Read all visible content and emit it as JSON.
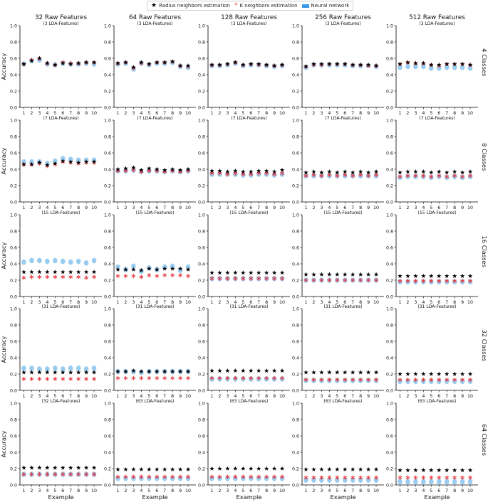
{
  "legend": {
    "items": [
      {
        "label": "Radius neighbors estimation",
        "marker": "black-star",
        "color": "#000000"
      },
      {
        "label": "K neighbors estimation",
        "marker": "red-star",
        "color": "#e8383d"
      },
      {
        "label": "Neural network",
        "marker": "blue-box",
        "color": "#3d9be9"
      }
    ]
  },
  "colors": {
    "radius": "#000000",
    "k_neighbors": "#e8383d",
    "neural_network": "#7fbfee"
  },
  "chart_data": {
    "type": "scatter",
    "columns": [
      "32 Raw Features",
      "64 Raw Features",
      "128 Raw Features",
      "256 Raw Features",
      "512 Raw Features"
    ],
    "rows": [
      "4 Classes",
      "8 Classes",
      "16 Classes",
      "32 Classes",
      "64 Classes"
    ],
    "xlabel": "Example",
    "ylabel": "Accuracy",
    "x": [
      1,
      2,
      3,
      4,
      5,
      6,
      7,
      8,
      9,
      10
    ],
    "ylim": [
      0.0,
      1.0
    ],
    "yticks": [
      "0.0",
      "0.2",
      "0.4",
      "0.6",
      "0.8",
      "1.0"
    ],
    "subtitles": [
      [
        "(3 LDA-Features)",
        "(3 LDA-Features)",
        "(3 LDA-Features)",
        "(3 LDA-Features)",
        "(3 LDA-Features)"
      ],
      [
        "(7 LDA-Features)",
        "(7 LDA-Features)",
        "(7 LDA-Features)",
        "(7 LDA-Features)",
        "(7 LDA-Features)"
      ],
      [
        "(15 LDA-Features)",
        "(15 LDA-Features)",
        "(15 LDA-Features)",
        "(15 LDA-Features)",
        "(15 LDA-Features)"
      ],
      [
        "(31 LDA-Features)",
        "(31 LDA-Features)",
        "(31 LDA-Features)",
        "(31 LDA-Features)",
        "(31 LDA-Features)"
      ],
      [
        "(32 LDA-Features)",
        "(63 LDA-Features)",
        "(63 LDA-Features)",
        "(63 LDA-Features)",
        "(63 LDA-Features)"
      ]
    ],
    "series": {
      "radius": [
        [
          [
            0.53,
            0.57,
            0.6,
            0.54,
            0.52,
            0.54,
            0.53,
            0.54,
            0.55,
            0.55
          ],
          [
            0.54,
            0.55,
            0.49,
            0.55,
            0.53,
            0.55,
            0.55,
            0.56,
            0.51,
            0.51
          ],
          [
            0.52,
            0.52,
            0.53,
            0.55,
            0.52,
            0.53,
            0.53,
            0.52,
            0.51,
            0.52
          ],
          [
            0.5,
            0.53,
            0.53,
            0.53,
            0.53,
            0.53,
            0.52,
            0.52,
            0.52,
            0.51
          ],
          [
            0.53,
            0.55,
            0.54,
            0.54,
            0.52,
            0.52,
            0.53,
            0.53,
            0.53,
            0.52
          ]
        ],
        [
          [
            0.46,
            0.46,
            0.48,
            0.45,
            0.47,
            0.5,
            0.49,
            0.48,
            0.49,
            0.49
          ],
          [
            0.4,
            0.41,
            0.42,
            0.39,
            0.41,
            0.4,
            0.39,
            0.4,
            0.39,
            0.4
          ],
          [
            0.38,
            0.38,
            0.37,
            0.38,
            0.37,
            0.37,
            0.38,
            0.38,
            0.37,
            0.39
          ],
          [
            0.36,
            0.37,
            0.36,
            0.37,
            0.36,
            0.37,
            0.36,
            0.37,
            0.36,
            0.37
          ],
          [
            0.36,
            0.37,
            0.37,
            0.37,
            0.36,
            0.37,
            0.36,
            0.37,
            0.36,
            0.37
          ]
        ],
        [
          [
            0.3,
            0.3,
            0.3,
            0.3,
            0.3,
            0.3,
            0.3,
            0.3,
            0.3,
            0.3
          ],
          [
            0.33,
            0.33,
            0.33,
            0.32,
            0.34,
            0.33,
            0.34,
            0.34,
            0.34,
            0.33
          ],
          [
            0.29,
            0.29,
            0.29,
            0.29,
            0.29,
            0.29,
            0.29,
            0.29,
            0.29,
            0.29
          ],
          [
            0.27,
            0.27,
            0.27,
            0.27,
            0.27,
            0.27,
            0.27,
            0.27,
            0.27,
            0.27
          ],
          [
            0.25,
            0.25,
            0.25,
            0.25,
            0.25,
            0.25,
            0.25,
            0.25,
            0.25,
            0.25
          ]
        ],
        [
          [
            0.22,
            0.22,
            0.22,
            0.22,
            0.22,
            0.22,
            0.22,
            0.22,
            0.22,
            0.22
          ],
          [
            0.23,
            0.23,
            0.24,
            0.23,
            0.23,
            0.23,
            0.23,
            0.23,
            0.23,
            0.23
          ],
          [
            0.24,
            0.24,
            0.24,
            0.24,
            0.24,
            0.24,
            0.24,
            0.24,
            0.24,
            0.24
          ],
          [
            0.22,
            0.22,
            0.22,
            0.22,
            0.22,
            0.22,
            0.22,
            0.22,
            0.22,
            0.22
          ],
          [
            0.2,
            0.2,
            0.2,
            0.2,
            0.2,
            0.2,
            0.2,
            0.2,
            0.2,
            0.2
          ]
        ],
        [
          [
            0.21,
            0.21,
            0.21,
            0.21,
            0.21,
            0.21,
            0.21,
            0.21,
            0.21,
            0.21
          ],
          [
            0.19,
            0.19,
            0.19,
            0.19,
            0.19,
            0.19,
            0.19,
            0.19,
            0.19,
            0.19
          ],
          [
            0.2,
            0.2,
            0.2,
            0.2,
            0.2,
            0.2,
            0.2,
            0.2,
            0.2,
            0.2
          ],
          [
            0.19,
            0.19,
            0.19,
            0.19,
            0.19,
            0.19,
            0.19,
            0.19,
            0.19,
            0.19
          ],
          [
            0.18,
            0.18,
            0.18,
            0.18,
            0.18,
            0.18,
            0.18,
            0.18,
            0.18,
            0.18
          ]
        ]
      ],
      "k_neighbors": [
        [
          [
            0.53,
            0.58,
            0.6,
            0.54,
            0.52,
            0.55,
            0.54,
            0.54,
            0.55,
            0.55
          ],
          [
            0.54,
            0.55,
            0.48,
            0.54,
            0.53,
            0.55,
            0.55,
            0.56,
            0.51,
            0.5
          ],
          [
            0.52,
            0.52,
            0.53,
            0.55,
            0.52,
            0.53,
            0.52,
            0.52,
            0.51,
            0.52
          ],
          [
            0.5,
            0.52,
            0.52,
            0.53,
            0.53,
            0.53,
            0.52,
            0.52,
            0.51,
            0.51
          ],
          [
            0.53,
            0.55,
            0.54,
            0.54,
            0.52,
            0.51,
            0.53,
            0.53,
            0.53,
            0.52
          ]
        ],
        [
          [
            0.46,
            0.46,
            0.47,
            0.44,
            0.46,
            0.49,
            0.48,
            0.47,
            0.48,
            0.48
          ],
          [
            0.38,
            0.38,
            0.39,
            0.37,
            0.38,
            0.38,
            0.37,
            0.38,
            0.37,
            0.38
          ],
          [
            0.35,
            0.35,
            0.34,
            0.35,
            0.34,
            0.34,
            0.35,
            0.35,
            0.34,
            0.35
          ],
          [
            0.32,
            0.33,
            0.32,
            0.33,
            0.32,
            0.33,
            0.32,
            0.33,
            0.32,
            0.33
          ],
          [
            0.31,
            0.32,
            0.32,
            0.32,
            0.31,
            0.32,
            0.31,
            0.32,
            0.31,
            0.32
          ]
        ],
        [
          [
            0.23,
            0.24,
            0.24,
            0.24,
            0.24,
            0.24,
            0.24,
            0.24,
            0.23,
            0.24
          ],
          [
            0.25,
            0.25,
            0.25,
            0.24,
            0.26,
            0.25,
            0.26,
            0.26,
            0.26,
            0.25
          ],
          [
            0.22,
            0.22,
            0.22,
            0.22,
            0.22,
            0.22,
            0.22,
            0.22,
            0.22,
            0.22
          ],
          [
            0.2,
            0.2,
            0.2,
            0.2,
            0.2,
            0.2,
            0.2,
            0.2,
            0.2,
            0.2
          ],
          [
            0.19,
            0.19,
            0.19,
            0.19,
            0.19,
            0.19,
            0.19,
            0.19,
            0.19,
            0.19
          ]
        ],
        [
          [
            0.14,
            0.14,
            0.14,
            0.14,
            0.14,
            0.14,
            0.14,
            0.14,
            0.14,
            0.14
          ],
          [
            0.15,
            0.15,
            0.15,
            0.15,
            0.15,
            0.15,
            0.15,
            0.15,
            0.15,
            0.15
          ],
          [
            0.15,
            0.15,
            0.15,
            0.15,
            0.15,
            0.15,
            0.15,
            0.15,
            0.15,
            0.15
          ],
          [
            0.13,
            0.13,
            0.13,
            0.13,
            0.13,
            0.13,
            0.13,
            0.13,
            0.13,
            0.13
          ],
          [
            0.13,
            0.13,
            0.13,
            0.13,
            0.13,
            0.13,
            0.13,
            0.13,
            0.13,
            0.13
          ]
        ],
        [
          [
            0.13,
            0.13,
            0.13,
            0.13,
            0.13,
            0.13,
            0.13,
            0.13,
            0.13,
            0.13
          ],
          [
            0.1,
            0.1,
            0.1,
            0.1,
            0.1,
            0.1,
            0.1,
            0.1,
            0.1,
            0.1
          ],
          [
            0.1,
            0.1,
            0.1,
            0.1,
            0.1,
            0.1,
            0.1,
            0.1,
            0.1,
            0.1
          ],
          [
            0.09,
            0.09,
            0.09,
            0.09,
            0.09,
            0.09,
            0.09,
            0.09,
            0.09,
            0.09
          ],
          [
            0.09,
            0.09,
            0.09,
            0.09,
            0.09,
            0.09,
            0.09,
            0.09,
            0.09,
            0.09
          ]
        ]
      ],
      "neural_network": [
        [
          [
            0.53,
            0.57,
            0.58,
            0.53,
            0.52,
            0.54,
            0.53,
            0.53,
            0.54,
            0.53
          ],
          [
            0.53,
            0.54,
            0.47,
            0.54,
            0.52,
            0.54,
            0.54,
            0.55,
            0.5,
            0.49
          ],
          [
            0.51,
            0.51,
            0.52,
            0.54,
            0.51,
            0.52,
            0.52,
            0.51,
            0.5,
            0.51
          ],
          [
            0.49,
            0.52,
            0.52,
            0.52,
            0.52,
            0.52,
            0.51,
            0.51,
            0.51,
            0.5
          ],
          [
            0.49,
            0.5,
            0.5,
            0.5,
            0.48,
            0.48,
            0.49,
            0.49,
            0.49,
            0.48
          ]
        ],
        [
          [
            0.49,
            0.49,
            0.49,
            0.47,
            0.5,
            0.53,
            0.52,
            0.51,
            0.51,
            0.51
          ],
          [
            0.38,
            0.38,
            0.39,
            0.37,
            0.38,
            0.38,
            0.37,
            0.38,
            0.37,
            0.38
          ],
          [
            0.34,
            0.34,
            0.34,
            0.34,
            0.33,
            0.33,
            0.34,
            0.34,
            0.33,
            0.34
          ],
          [
            0.32,
            0.32,
            0.32,
            0.32,
            0.32,
            0.32,
            0.32,
            0.32,
            0.32,
            0.32
          ],
          [
            0.3,
            0.31,
            0.31,
            0.31,
            0.3,
            0.31,
            0.3,
            0.31,
            0.3,
            0.31
          ]
        ],
        [
          [
            0.42,
            0.44,
            0.44,
            0.43,
            0.44,
            0.43,
            0.42,
            0.43,
            0.41,
            0.44
          ],
          [
            0.36,
            0.33,
            0.37,
            0.31,
            0.35,
            0.33,
            0.36,
            0.37,
            0.32,
            0.36
          ],
          [
            0.22,
            0.22,
            0.22,
            0.22,
            0.22,
            0.22,
            0.22,
            0.22,
            0.22,
            0.22
          ],
          [
            0.2,
            0.2,
            0.2,
            0.2,
            0.2,
            0.2,
            0.2,
            0.2,
            0.2,
            0.2
          ],
          [
            0.18,
            0.18,
            0.18,
            0.18,
            0.18,
            0.18,
            0.18,
            0.18,
            0.18,
            0.18
          ]
        ],
        [
          [
            0.27,
            0.27,
            0.26,
            0.26,
            0.27,
            0.26,
            0.27,
            0.27,
            0.26,
            0.27
          ],
          [
            0.23,
            0.23,
            0.23,
            0.22,
            0.23,
            0.23,
            0.23,
            0.23,
            0.23,
            0.23
          ],
          [
            0.14,
            0.14,
            0.14,
            0.14,
            0.14,
            0.14,
            0.14,
            0.14,
            0.14,
            0.14
          ],
          [
            0.12,
            0.12,
            0.12,
            0.12,
            0.12,
            0.12,
            0.12,
            0.12,
            0.12,
            0.12
          ],
          [
            0.11,
            0.11,
            0.11,
            0.11,
            0.11,
            0.11,
            0.11,
            0.11,
            0.11,
            0.11
          ]
        ],
        [
          [
            0.13,
            0.13,
            0.13,
            0.13,
            0.13,
            0.13,
            0.13,
            0.13,
            0.13,
            0.13
          ],
          [
            0.08,
            0.08,
            0.08,
            0.08,
            0.08,
            0.08,
            0.08,
            0.08,
            0.08,
            0.08
          ],
          [
            0.08,
            0.08,
            0.08,
            0.08,
            0.08,
            0.08,
            0.08,
            0.08,
            0.08,
            0.08
          ],
          [
            0.06,
            0.06,
            0.06,
            0.06,
            0.06,
            0.06,
            0.06,
            0.06,
            0.06,
            0.06
          ],
          [
            0.04,
            0.04,
            0.04,
            0.04,
            0.04,
            0.04,
            0.04,
            0.04,
            0.04,
            0.04
          ]
        ]
      ]
    }
  }
}
